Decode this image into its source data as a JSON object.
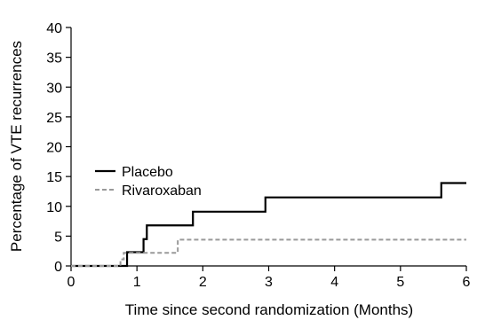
{
  "chart_data": {
    "type": "line",
    "step": true,
    "title": "",
    "xlabel": "Time since second randomization (Months)",
    "ylabel": "Percentage of VTE recurrences",
    "xlim": [
      0,
      6
    ],
    "ylim": [
      0,
      40
    ],
    "xticks": [
      0,
      1,
      2,
      3,
      4,
      5,
      6
    ],
    "yticks": [
      0,
      5,
      10,
      15,
      20,
      25,
      30,
      35,
      40
    ],
    "grid": false,
    "legend_position": "middle-left",
    "series": [
      {
        "name": "Placebo",
        "color": "#000000",
        "line_style": "solid",
        "x": [
          0,
          0.85,
          1.0,
          1.1,
          1.15,
          1.85,
          2.95,
          5.62,
          6.0
        ],
        "y": [
          0,
          2.3,
          2.3,
          4.5,
          6.8,
          9.1,
          11.5,
          13.9,
          13.9
        ]
      },
      {
        "name": "Rivaroxaban",
        "color": "#999999",
        "line_style": "dashed",
        "x": [
          0,
          0.75,
          0.8,
          1.62,
          6.0
        ],
        "y": [
          0,
          1.1,
          2.2,
          4.4,
          4.4
        ]
      }
    ]
  }
}
